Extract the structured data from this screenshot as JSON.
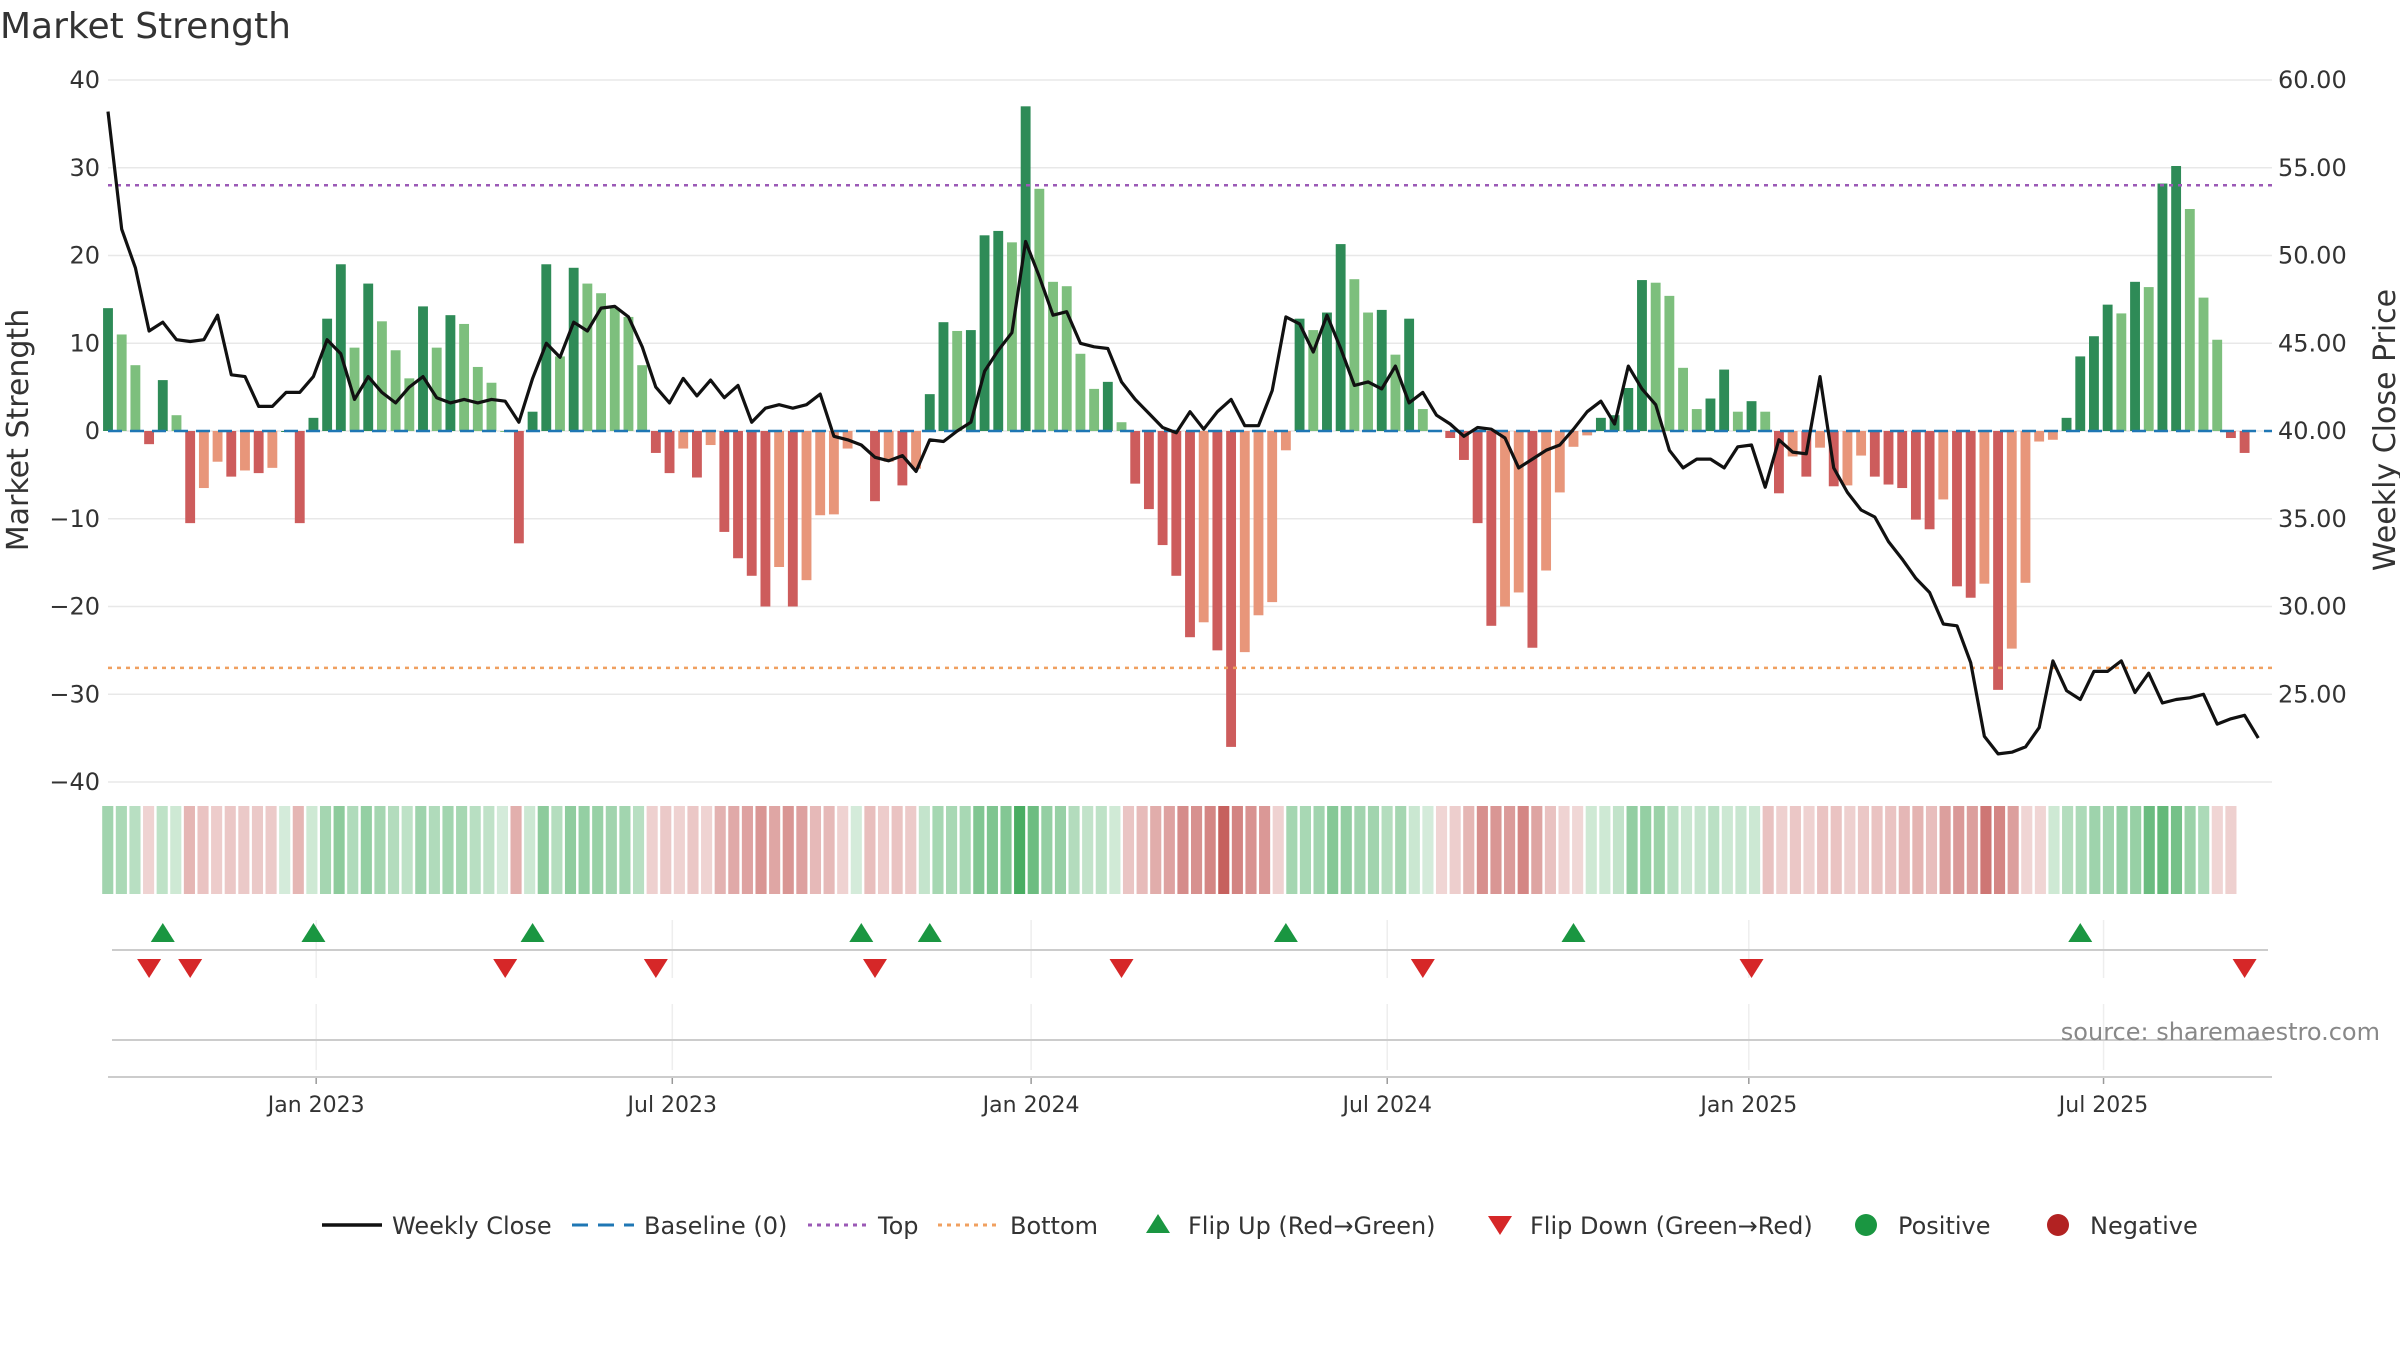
{
  "title": "Market Strength",
  "source_text": "source: sharemaestro.com",
  "chart_data": {
    "type": "bar+line",
    "title": "Market Strength",
    "ylabel_left": "Market Strength",
    "ylabel_right": "Weekly Close Price",
    "ylim_left": [
      -40,
      40
    ],
    "ylim_right": [
      20.0,
      60.0
    ],
    "yticks_left": [
      40,
      30,
      20,
      10,
      0,
      -10,
      -20,
      -30,
      -40
    ],
    "yticks_left_labels": [
      "40",
      "30",
      "20",
      "10",
      "0",
      "−10",
      "−20",
      "−30",
      "−40"
    ],
    "yticks_right": [
      60.0,
      55.0,
      50.0,
      45.0,
      40.0,
      35.0,
      30.0,
      25.0
    ],
    "yticks_right_labels": [
      "60.00",
      "55.00",
      "50.00",
      "45.00",
      "40.00",
      "35.00",
      "30.00",
      "25.00"
    ],
    "top_level": 28,
    "bottom_level": -27,
    "x_week_range": [
      0,
      158
    ],
    "xticks": [
      {
        "week": 15.2,
        "label": "Jan 2023"
      },
      {
        "week": 41.2,
        "label": "Jul 2023"
      },
      {
        "week": 67.4,
        "label": "Jan 2024"
      },
      {
        "week": 93.4,
        "label": "Jul 2024"
      },
      {
        "week": 119.8,
        "label": "Jan 2025"
      },
      {
        "week": 145.7,
        "label": "Jul 2025"
      }
    ],
    "strength": [
      14,
      11,
      7.5,
      -1.5,
      5.8,
      1.8,
      -10.5,
      -6.5,
      -3.5,
      -5.2,
      -4.5,
      -4.8,
      -4.2,
      0,
      -10.5,
      1.5,
      12.8,
      19,
      9.5,
      16.8,
      12.5,
      9.2,
      6,
      14.2,
      9.5,
      13.2,
      12.2,
      7.3,
      5.5,
      0,
      -12.8,
      2.2,
      19,
      8.5,
      18.6,
      16.8,
      15.7,
      14,
      13,
      7.5,
      -2.5,
      -4.8,
      -2,
      -5.3,
      -1.6,
      -11.5,
      -14.5,
      -16.5,
      -20,
      -15.5,
      -20,
      -17,
      -9.6,
      -9.5,
      -2,
      0,
      -8,
      -3.5,
      -6.2,
      -4.3,
      4.2,
      12.4,
      11.4,
      11.5,
      22.3,
      22.8,
      21.5,
      37,
      27.6,
      17,
      16.5,
      8.8,
      4.8,
      5.6,
      1,
      -6,
      -8.9,
      -13,
      -16.5,
      -23.5,
      -21.8,
      -25,
      -36,
      -25.2,
      -21,
      -19.5,
      -2.2,
      12.8,
      11.5,
      13.5,
      21.3,
      17.3,
      13.5,
      13.8,
      8.7,
      12.8,
      2.5,
      0,
      -0.8,
      -3.3,
      -10.5,
      -22.2,
      -20,
      -18.4,
      -24.7,
      -15.9,
      -7,
      -1.8,
      -0.5,
      1.5,
      1.8,
      4.9,
      17.2,
      16.9,
      15.4,
      7.2,
      2.5,
      3.7,
      7,
      2.2,
      3.4,
      2.2,
      -7.1,
      -2.9,
      -5.2,
      -1.9,
      -6.3,
      -6.2,
      -2.8,
      -5.2,
      -6.1,
      -6.5,
      -10.1,
      -11.2,
      -7.8,
      -17.7,
      -19,
      -17.4,
      -29.5,
      -24.8,
      -17.3,
      -1.2,
      -1,
      1.5,
      8.5,
      10.8,
      14.4,
      13.4,
      17,
      16.4,
      28.2,
      30.2,
      25.3,
      15.2,
      10.4,
      -0.8,
      -2.5
    ],
    "weekly_close": [
      58.2,
      51.5,
      49.3,
      45.7,
      46.2,
      45.2,
      45.1,
      45.2,
      46.6,
      43.2,
      43.1,
      41.4,
      41.4,
      42.2,
      42.2,
      43.1,
      45.2,
      44.4,
      41.8,
      43.1,
      42.2,
      41.6,
      42.5,
      43.1,
      41.9,
      41.6,
      41.8,
      41.6,
      41.8,
      41.7,
      40.5,
      43,
      45,
      44.2,
      46.2,
      45.7,
      47,
      47.1,
      46.5,
      44.8,
      42.5,
      41.6,
      43,
      42,
      42.9,
      41.9,
      42.6,
      40.5,
      41.3,
      41.5,
      41.3,
      41.5,
      42.1,
      39.7,
      39.5,
      39.2,
      38.5,
      38.3,
      38.6,
      37.7,
      39.5,
      39.4,
      40,
      40.5,
      43.4,
      44.6,
      45.6,
      50.8,
      48.8,
      46.6,
      46.8,
      45,
      44.8,
      44.7,
      42.8,
      41.8,
      41,
      40.2,
      39.9,
      41.1,
      40.1,
      41.1,
      41.8,
      40.3,
      40.3,
      42.3,
      46.5,
      46.1,
      44.5,
      46.6,
      44.7,
      42.6,
      42.8,
      42.4,
      43.7,
      41.6,
      42.2,
      40.9,
      40.4,
      39.7,
      40.2,
      40.1,
      39.6,
      37.9,
      38.4,
      38.9,
      39.2,
      40.1,
      41.1,
      41.7,
      40.4,
      43.7,
      42.4,
      41.5,
      38.9,
      37.9,
      38.4,
      38.4,
      37.9,
      39.1,
      39.2,
      36.8,
      39.5,
      38.8,
      38.7,
      43.1,
      37.9,
      36.5,
      35.5,
      35.1,
      33.7,
      32.7,
      31.6,
      30.8,
      29,
      28.9,
      26.8,
      22.6,
      21.6,
      21.7,
      22,
      23.1,
      26.9,
      25.2,
      24.7,
      26.3,
      26.3,
      26.9,
      25.1,
      26.2,
      24.5,
      24.7,
      24.8,
      25,
      23.3,
      23.6,
      23.8,
      22.5
    ],
    "flip_up_weeks": [
      4,
      15,
      31,
      55,
      60,
      86,
      107,
      144
    ],
    "flip_down_weeks": [
      3,
      6,
      29,
      40,
      56,
      74,
      96,
      120,
      156
    ],
    "legend": [
      {
        "label": "Weekly Close",
        "kind": "line",
        "color": "#111111"
      },
      {
        "label": "Baseline (0)",
        "kind": "dashed",
        "color": "#1f77b4"
      },
      {
        "label": "Top",
        "kind": "dotted",
        "color": "#9b59b6"
      },
      {
        "label": "Bottom",
        "kind": "dotted",
        "color": "#f0a060"
      },
      {
        "label": "Flip Up (Red→Green)",
        "kind": "triangle-up",
        "color": "#1a9641"
      },
      {
        "label": "Flip Down (Green→Red)",
        "kind": "triangle-down",
        "color": "#d62728"
      },
      {
        "label": "Positive",
        "kind": "circle",
        "color": "#1a9641"
      },
      {
        "label": "Negative",
        "kind": "circle",
        "color": "#b22222"
      }
    ],
    "legend_position": "bottom-center"
  }
}
